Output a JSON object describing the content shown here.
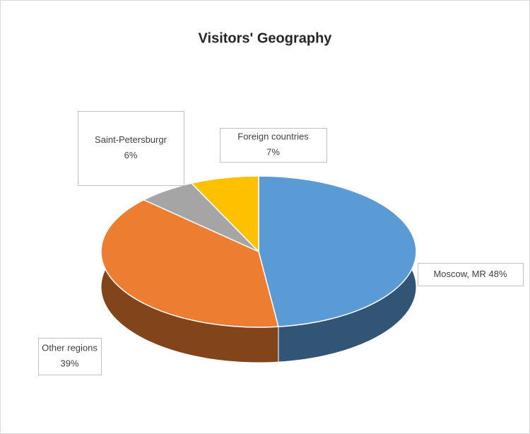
{
  "chart_data": {
    "type": "pie3d",
    "title": "Visitors' Geography",
    "categories": [
      "Moscow, MR",
      "Other regions",
      "Saint-Petersburgr",
      "Foreign countries"
    ],
    "values": [
      48,
      39,
      6,
      7
    ],
    "value_labels": [
      "48%",
      "39%",
      "6%",
      "7%"
    ],
    "colors": [
      "#5b9bd5",
      "#ed7d31",
      "#a5a5a5",
      "#ffc000"
    ]
  }
}
